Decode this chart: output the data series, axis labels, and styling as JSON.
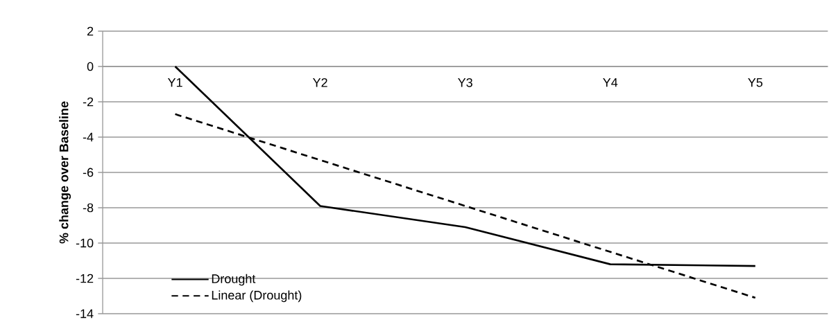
{
  "chart_data": {
    "type": "line",
    "ylabel": "% change over Baseline",
    "categories": [
      "Y1",
      "Y2",
      "Y3",
      "Y4",
      "Y5"
    ],
    "series": [
      {
        "name": "Drought",
        "color": "#000000",
        "line_style": "solid",
        "values": [
          0,
          -7.9,
          -9.1,
          -11.2,
          -11.3
        ]
      },
      {
        "name": "Linear (Drought)",
        "color": "#000000",
        "line_style": "dashed",
        "values": [
          -2.7,
          -5.3,
          -7.9,
          -10.5,
          -13.1
        ]
      }
    ],
    "ylim": [
      -14,
      2
    ],
    "yticks": [
      -14,
      -12,
      -10,
      -8,
      -6,
      -4,
      -2,
      0,
      2
    ],
    "grid": "y",
    "legend": "bottom left",
    "marker": "none"
  }
}
